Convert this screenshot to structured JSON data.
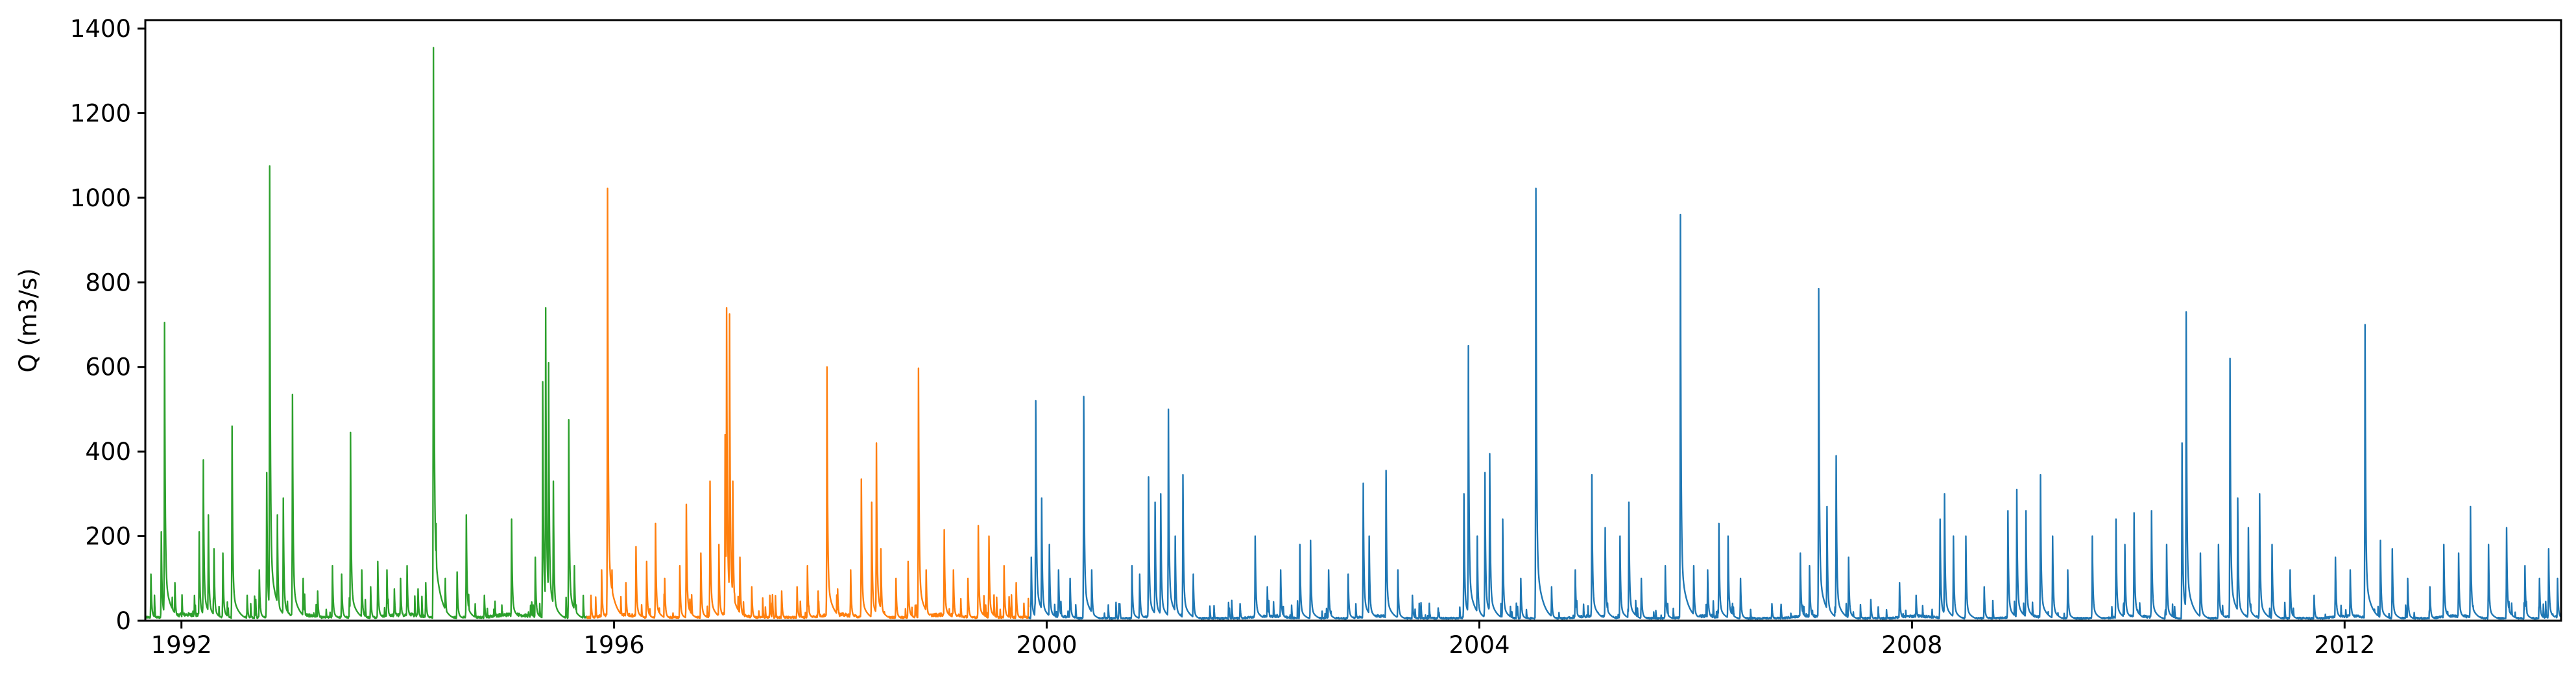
{
  "chart_data": {
    "type": "line",
    "title": "",
    "xlabel": "",
    "ylabel": "Q (m3/s)",
    "xlim": [
      "1991-09-01",
      "2014-01-01"
    ],
    "ylim": [
      0,
      1420
    ],
    "grid": false,
    "legend": "none",
    "x_ticks": [
      {
        "date": "1992-01-01",
        "label": "1992"
      },
      {
        "date": "1996-01-01",
        "label": "1996"
      },
      {
        "date": "2000-01-01",
        "label": "2000"
      },
      {
        "date": "2004-01-01",
        "label": "2004"
      },
      {
        "date": "2008-01-01",
        "label": "2008"
      },
      {
        "date": "2012-01-01",
        "label": "2012"
      }
    ],
    "y_ticks": [
      {
        "value": 0,
        "label": "0"
      },
      {
        "value": 200,
        "label": "200"
      },
      {
        "value": 400,
        "label": "400"
      },
      {
        "value": 600,
        "label": "600"
      },
      {
        "value": 800,
        "label": "800"
      },
      {
        "value": 1000,
        "label": "1000"
      },
      {
        "value": 1200,
        "label": "1200"
      },
      {
        "value": 1400,
        "label": "1400"
      }
    ],
    "series": [
      {
        "color": "#2ca02c",
        "baseline": 8,
        "start": "1991-09-01",
        "end": "1995-10-01",
        "peaks": [
          [
            "1991-09-20",
            110
          ],
          [
            "1991-10-25",
            210
          ],
          [
            "1991-11-05",
            705
          ],
          [
            "1991-12-10",
            90
          ],
          [
            "1992-03-01",
            210
          ],
          [
            "1992-03-15",
            380
          ],
          [
            "1992-04-01",
            250
          ],
          [
            "1992-04-20",
            170
          ],
          [
            "1992-05-20",
            160
          ],
          [
            "1992-06-20",
            460
          ],
          [
            "1992-08-10",
            60
          ],
          [
            "1992-09-20",
            120
          ],
          [
            "1992-10-15",
            350
          ],
          [
            "1992-10-25",
            1075
          ],
          [
            "1992-11-20",
            250
          ],
          [
            "1992-12-10",
            290
          ],
          [
            "1993-01-10",
            535
          ],
          [
            "1993-02-15",
            100
          ],
          [
            "1993-04-05",
            70
          ],
          [
            "1993-05-25",
            130
          ],
          [
            "1993-06-25",
            110
          ],
          [
            "1993-07-25",
            445
          ],
          [
            "1993-09-01",
            120
          ],
          [
            "1993-10-01",
            80
          ],
          [
            "1993-10-25",
            140
          ],
          [
            "1993-11-25",
            120
          ],
          [
            "1993-12-20",
            75
          ],
          [
            "1994-01-10",
            100
          ],
          [
            "1994-02-01",
            130
          ],
          [
            "1994-03-10",
            75
          ],
          [
            "1994-04-05",
            90
          ],
          [
            "1994-05-01",
            1355
          ],
          [
            "1994-05-10",
            230
          ],
          [
            "1994-06-10",
            100
          ],
          [
            "1994-07-20",
            115
          ],
          [
            "1994-08-20",
            250
          ],
          [
            "1994-10-20",
            60
          ],
          [
            "1995-01-20",
            240
          ],
          [
            "1995-04-10",
            150
          ],
          [
            "1995-05-05",
            565
          ],
          [
            "1995-05-15",
            740
          ],
          [
            "1995-05-25",
            610
          ],
          [
            "1995-06-10",
            330
          ],
          [
            "1995-08-01",
            475
          ],
          [
            "1995-08-20",
            130
          ]
        ]
      },
      {
        "color": "#ff7f0e",
        "baseline": 8,
        "start": "1995-10-01",
        "end": "1999-11-01",
        "peaks": [
          [
            "1995-10-15",
            60
          ],
          [
            "1995-11-20",
            120
          ],
          [
            "1995-12-10",
            1022
          ],
          [
            "1995-12-25",
            120
          ],
          [
            "1996-02-10",
            90
          ],
          [
            "1996-03-15",
            175
          ],
          [
            "1996-04-20",
            140
          ],
          [
            "1996-05-20",
            230
          ],
          [
            "1996-06-20",
            100
          ],
          [
            "1996-08-10",
            130
          ],
          [
            "1996-09-01",
            275
          ],
          [
            "1996-10-20",
            160
          ],
          [
            "1996-11-20",
            330
          ],
          [
            "1996-12-20",
            180
          ],
          [
            "1997-01-10",
            440
          ],
          [
            "1997-01-15",
            740
          ],
          [
            "1997-01-25",
            725
          ],
          [
            "1997-02-05",
            330
          ],
          [
            "1997-03-01",
            150
          ],
          [
            "1997-04-10",
            80
          ],
          [
            "1997-06-10",
            60
          ],
          [
            "1997-07-20",
            70
          ],
          [
            "1997-09-10",
            80
          ],
          [
            "1997-10-15",
            130
          ],
          [
            "1997-11-20",
            70
          ],
          [
            "1997-12-20",
            600
          ],
          [
            "1998-01-25",
            75
          ],
          [
            "1998-03-10",
            120
          ],
          [
            "1998-04-15",
            335
          ],
          [
            "1998-05-20",
            280
          ],
          [
            "1998-06-05",
            420
          ],
          [
            "1998-06-20",
            170
          ],
          [
            "1998-08-10",
            100
          ],
          [
            "1998-09-20",
            140
          ],
          [
            "1998-10-25",
            597
          ],
          [
            "1998-11-20",
            120
          ],
          [
            "1999-01-20",
            215
          ],
          [
            "1999-02-20",
            120
          ],
          [
            "1999-04-10",
            100
          ],
          [
            "1999-05-15",
            225
          ],
          [
            "1999-06-20",
            200
          ],
          [
            "1999-08-10",
            130
          ],
          [
            "1999-09-20",
            90
          ]
        ]
      },
      {
        "color": "#1f77b4",
        "baseline": 6,
        "start": "1999-11-01",
        "end": "2014-01-01",
        "peaks": [
          [
            "1999-11-10",
            150
          ],
          [
            "1999-11-25",
            520
          ],
          [
            "1999-12-15",
            290
          ],
          [
            "2000-01-10",
            180
          ],
          [
            "2000-02-10",
            120
          ],
          [
            "2000-03-20",
            100
          ],
          [
            "2000-05-05",
            530
          ],
          [
            "2000-06-01",
            120
          ],
          [
            "2000-09-01",
            40
          ],
          [
            "2000-10-15",
            130
          ],
          [
            "2000-11-10",
            110
          ],
          [
            "2000-12-10",
            340
          ],
          [
            "2001-01-01",
            280
          ],
          [
            "2001-01-20",
            300
          ],
          [
            "2001-02-15",
            500
          ],
          [
            "2001-03-10",
            200
          ],
          [
            "2001-04-05",
            345
          ],
          [
            "2001-05-10",
            110
          ],
          [
            "2001-10-15",
            40
          ],
          [
            "2001-12-05",
            200
          ],
          [
            "2002-01-15",
            80
          ],
          [
            "2002-03-01",
            120
          ],
          [
            "2002-05-05",
            180
          ],
          [
            "2002-06-10",
            190
          ],
          [
            "2002-08-10",
            120
          ],
          [
            "2002-10-15",
            110
          ],
          [
            "2002-12-05",
            325
          ],
          [
            "2002-12-25",
            200
          ],
          [
            "2003-02-20",
            355
          ],
          [
            "2003-04-01",
            120
          ],
          [
            "2003-05-20",
            60
          ],
          [
            "2003-08-15",
            30
          ],
          [
            "2003-11-10",
            300
          ],
          [
            "2003-11-25",
            650
          ],
          [
            "2003-12-25",
            200
          ],
          [
            "2004-01-20",
            350
          ],
          [
            "2004-02-05",
            395
          ],
          [
            "2004-03-20",
            240
          ],
          [
            "2004-05-20",
            100
          ],
          [
            "2004-07-10",
            1022
          ],
          [
            "2004-09-01",
            80
          ],
          [
            "2004-11-20",
            120
          ],
          [
            "2005-01-15",
            345
          ],
          [
            "2005-03-01",
            220
          ],
          [
            "2005-04-20",
            200
          ],
          [
            "2005-05-20",
            280
          ],
          [
            "2005-07-01",
            100
          ],
          [
            "2005-09-20",
            130
          ],
          [
            "2005-11-10",
            960
          ],
          [
            "2005-12-25",
            130
          ],
          [
            "2006-02-10",
            120
          ],
          [
            "2006-03-20",
            230
          ],
          [
            "2006-04-20",
            200
          ],
          [
            "2006-06-01",
            100
          ],
          [
            "2006-09-15",
            40
          ],
          [
            "2006-12-20",
            160
          ],
          [
            "2007-01-20",
            130
          ],
          [
            "2007-02-20",
            785
          ],
          [
            "2007-03-20",
            270
          ],
          [
            "2007-04-20",
            390
          ],
          [
            "2007-06-01",
            150
          ],
          [
            "2007-08-15",
            50
          ],
          [
            "2007-11-20",
            90
          ],
          [
            "2008-01-15",
            60
          ],
          [
            "2008-04-05",
            240
          ],
          [
            "2008-04-20",
            300
          ],
          [
            "2008-05-20",
            200
          ],
          [
            "2008-07-01",
            200
          ],
          [
            "2008-09-01",
            80
          ],
          [
            "2008-11-20",
            260
          ],
          [
            "2008-12-20",
            310
          ],
          [
            "2009-01-20",
            260
          ],
          [
            "2009-03-10",
            345
          ],
          [
            "2009-04-20",
            200
          ],
          [
            "2009-06-10",
            120
          ],
          [
            "2009-09-01",
            200
          ],
          [
            "2009-11-20",
            240
          ],
          [
            "2009-12-20",
            180
          ],
          [
            "2010-01-20",
            255
          ],
          [
            "2010-03-20",
            260
          ],
          [
            "2010-05-10",
            180
          ],
          [
            "2010-07-01",
            420
          ],
          [
            "2010-07-15",
            730
          ],
          [
            "2010-09-01",
            160
          ],
          [
            "2010-11-01",
            180
          ],
          [
            "2010-12-10",
            620
          ],
          [
            "2011-01-05",
            290
          ],
          [
            "2011-02-10",
            220
          ],
          [
            "2011-03-20",
            300
          ],
          [
            "2011-05-01",
            180
          ],
          [
            "2011-07-01",
            120
          ],
          [
            "2011-09-20",
            60
          ],
          [
            "2011-12-01",
            150
          ],
          [
            "2012-01-20",
            120
          ],
          [
            "2012-03-10",
            700
          ],
          [
            "2012-05-01",
            190
          ],
          [
            "2012-06-10",
            170
          ],
          [
            "2012-08-01",
            100
          ],
          [
            "2012-10-15",
            80
          ],
          [
            "2012-12-01",
            180
          ],
          [
            "2013-01-20",
            160
          ],
          [
            "2013-03-01",
            270
          ],
          [
            "2013-05-01",
            180
          ],
          [
            "2013-07-01",
            220
          ],
          [
            "2013-09-01",
            130
          ],
          [
            "2013-10-20",
            100
          ],
          [
            "2013-11-20",
            170
          ],
          [
            "2013-12-20",
            100
          ]
        ]
      }
    ]
  }
}
